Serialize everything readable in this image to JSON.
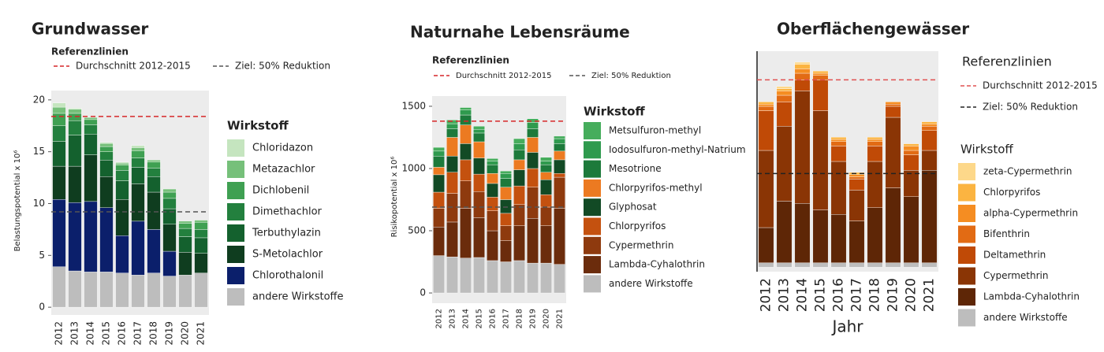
{
  "chart_data": [
    {
      "type": "bar",
      "stacked": true,
      "title": "Grundwasser",
      "ylabel": "Belastungspotential x 10⁶",
      "categories": [
        "2012",
        "2013",
        "2014",
        "2015",
        "2016",
        "2017",
        "2018",
        "2019",
        "2020",
        "2021"
      ],
      "ylim": [
        -0.75,
        20.9
      ],
      "yticks": [
        0,
        5,
        10,
        15,
        20
      ],
      "reference_title": "Referenzlinien",
      "reference_lines": [
        {
          "name": "Durchschnitt 2012-2015",
          "value": 18.4,
          "color": "#d62728"
        },
        {
          "name": "Ziel: 50% Reduktion",
          "value": 9.2,
          "color": "#555555"
        }
      ],
      "legend_title": "Wirkstoff",
      "series": [
        {
          "name": "andere Wirkstoffe",
          "color": "#bdbdbd",
          "values": [
            3.9,
            3.5,
            3.4,
            3.4,
            3.3,
            3.1,
            3.3,
            3.0,
            3.1,
            3.3
          ]
        },
        {
          "name": "Chlorothalonil",
          "color": "#0b1f6b",
          "values": [
            6.5,
            6.6,
            6.8,
            6.2,
            3.6,
            5.2,
            4.2,
            2.4,
            0,
            0
          ]
        },
        {
          "name": "S-Metolachlor",
          "color": "#0f3d1f",
          "values": [
            3.2,
            3.5,
            4.5,
            3.0,
            3.5,
            3.6,
            3.6,
            2.6,
            2.2,
            1.9
          ]
        },
        {
          "name": "Terbuthylazin",
          "color": "#14612e",
          "values": [
            2.4,
            3.0,
            2.0,
            1.6,
            1.8,
            1.6,
            1.5,
            1.5,
            1.5,
            1.5
          ]
        },
        {
          "name": "Dimethachlor",
          "color": "#23803e",
          "values": [
            1.5,
            1.4,
            0.9,
            0.8,
            1.0,
            0.9,
            0.8,
            1.0,
            0.8,
            0.8
          ]
        },
        {
          "name": "Dichlobenil",
          "color": "#3fa052",
          "values": [
            1.2,
            0.7,
            0.5,
            0.5,
            0.5,
            0.7,
            0.6,
            0.6,
            0.5,
            0.7
          ]
        },
        {
          "name": "Metazachlor",
          "color": "#76c07a",
          "values": [
            0.6,
            0.4,
            0.2,
            0.3,
            0.2,
            0.3,
            0.2,
            0.3,
            0.2,
            0.2
          ]
        },
        {
          "name": "Chloridazon",
          "color": "#c5e5bf",
          "values": [
            0.4,
            0.1,
            0,
            0.1,
            0.1,
            0.2,
            0,
            0,
            0,
            0
          ]
        }
      ]
    },
    {
      "type": "bar",
      "stacked": true,
      "title": "Naturnahe Lebensräume",
      "ylabel": "Risikopotential x 10⁶",
      "categories": [
        "2012",
        "2013",
        "2014",
        "2015",
        "2016",
        "2017",
        "2018",
        "2019",
        "2020",
        "2021"
      ],
      "ylim": [
        -82,
        1582
      ],
      "yticks": [
        0,
        500,
        1000,
        1500
      ],
      "reference_title": "Referenzlinien",
      "reference_lines": [
        {
          "name": "Durchschnitt 2012-2015",
          "value": 1380,
          "color": "#d62728"
        },
        {
          "name": "Ziel: 50% Reduktion",
          "value": 690,
          "color": "#555555"
        }
      ],
      "legend_title": "Wirkstoff",
      "series": [
        {
          "name": "andere Wirkstoffe",
          "color": "#bdbdbd",
          "values": [
            300,
            290,
            280,
            285,
            260,
            250,
            260,
            240,
            240,
            230
          ]
        },
        {
          "name": "Lambda-Cyhalothrin",
          "color": "#6b2c0c",
          "values": [
            230,
            280,
            400,
            320,
            240,
            170,
            280,
            360,
            300,
            450
          ]
        },
        {
          "name": "Cypermethrin",
          "color": "#8e3a0e",
          "values": [
            150,
            230,
            220,
            210,
            160,
            120,
            170,
            250,
            150,
            250
          ]
        },
        {
          "name": "Chlorpyrifos",
          "color": "#c4510f",
          "values": [
            130,
            170,
            170,
            140,
            110,
            100,
            150,
            150,
            100,
            30
          ]
        },
        {
          "name": "Glyphosat",
          "color": "#124a25",
          "values": [
            140,
            130,
            130,
            130,
            110,
            110,
            130,
            130,
            120,
            110
          ]
        },
        {
          "name": "Chlorpyrifos-methyl",
          "color": "#ec7a21",
          "values": [
            60,
            150,
            150,
            130,
            80,
            100,
            80,
            120,
            60,
            70
          ]
        },
        {
          "name": "Mesotrione",
          "color": "#1d7a3b",
          "values": [
            90,
            70,
            80,
            70,
            70,
            70,
            80,
            70,
            60,
            60
          ]
        },
        {
          "name": "Iodosulfuron-methyl-Natrium",
          "color": "#2f9a4e",
          "values": [
            40,
            40,
            40,
            30,
            30,
            40,
            50,
            50,
            30,
            40
          ]
        },
        {
          "name": "Metsulfuron-methyl",
          "color": "#46ad5c",
          "values": [
            30,
            30,
            20,
            25,
            20,
            20,
            40,
            30,
            30,
            20
          ]
        }
      ]
    },
    {
      "type": "bar",
      "stacked": true,
      "title": "Oberflächengewässer",
      "xlabel": "Jahr",
      "categories": [
        "2012",
        "2013",
        "2014",
        "2015",
        "2016",
        "2017",
        "2018",
        "2019",
        "2020",
        "2021"
      ],
      "ylim": [
        -2,
        98
      ],
      "reference_title": "Referenzlinien",
      "reference_lines": [
        {
          "name": "Durchschnitt 2012-2015",
          "value": 85,
          "color": "#e05050"
        },
        {
          "name": "Ziel: 50% Reduktion",
          "value": 42.5,
          "color": "#222222"
        }
      ],
      "legend_title": "Wirkstoff",
      "series": [
        {
          "name": "andere Wirkstoffe",
          "color": "#bdbdbd",
          "values": [
            2,
            2,
            2,
            2,
            2,
            2,
            2,
            2,
            2,
            2
          ]
        },
        {
          "name": "Lambda-Cyhalothrin",
          "color": "#5e2606",
          "values": [
            16,
            28,
            27,
            24,
            22,
            19,
            25,
            34,
            30,
            42
          ]
        },
        {
          "name": "Cypermethrin",
          "color": "#8a3505",
          "values": [
            35,
            34,
            51,
            45,
            24,
            14,
            21,
            32,
            12,
            9
          ]
        },
        {
          "name": "Deltamethrin",
          "color": "#c04a06",
          "values": [
            18,
            11,
            5,
            14,
            7,
            5,
            7,
            5,
            7,
            9
          ]
        },
        {
          "name": "Bifenthrin",
          "color": "#e26b14",
          "values": [
            2,
            3,
            3,
            2,
            2,
            1,
            2,
            1,
            2,
            2
          ]
        },
        {
          "name": "alpha-Cypermethrin",
          "color": "#f58d22",
          "values": [
            1,
            2,
            2,
            1,
            1,
            1,
            1,
            1,
            2,
            1
          ]
        },
        {
          "name": "Chlorpyrifos",
          "color": "#fbb441",
          "values": [
            1,
            1,
            2,
            1,
            1,
            1,
            1,
            0,
            1,
            1
          ]
        },
        {
          "name": "zeta-Cypermethrin",
          "color": "#fdd88a",
          "values": [
            0,
            1,
            1,
            0,
            0,
            0,
            0,
            0,
            0,
            0
          ]
        }
      ]
    }
  ]
}
